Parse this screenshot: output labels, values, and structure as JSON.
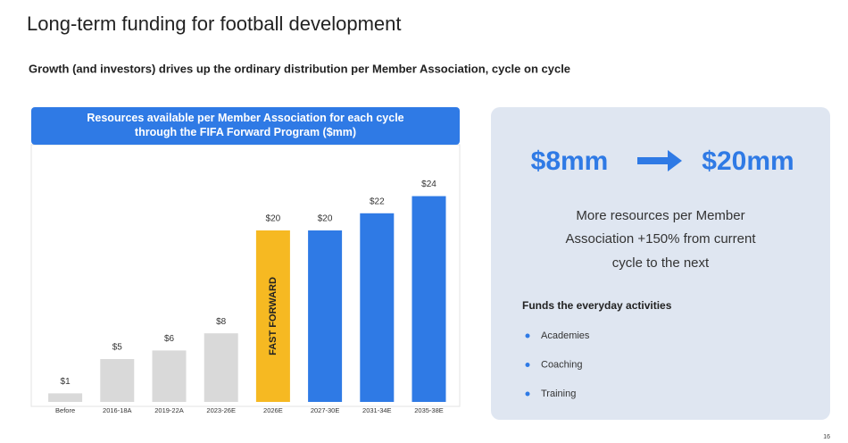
{
  "title": "Long-term funding for football development",
  "subtitle": "Growth (and investors) drives up the ordinary distribution per Member Association, cycle on cycle",
  "chart_data": {
    "type": "bar",
    "title": "Resources available per Member Association for each cycle through the FIFA Forward Program ($mm)",
    "categories": [
      "Before",
      "2016-18A",
      "2019-22A",
      "2023-26E",
      "2026E",
      "2027-30E",
      "2031-34E",
      "2035-38E"
    ],
    "values": [
      1,
      5,
      6,
      8,
      20,
      20,
      22,
      24
    ],
    "value_labels": [
      "$1",
      "$5",
      "$6",
      "$8",
      "$20",
      "$20",
      "$22",
      "$24"
    ],
    "colors": [
      "#d9d9d9",
      "#d9d9d9",
      "#d9d9d9",
      "#d9d9d9",
      "#f6b922",
      "#2f7ae5",
      "#2f7ae5",
      "#2f7ae5"
    ],
    "annotation": "FAST FORWARD"
  },
  "panel": {
    "from": "$8mm",
    "to": "$20mm",
    "description": [
      "More resources per Member",
      "Association +150% from current",
      "cycle to the next"
    ],
    "list_title": "Funds the everyday activities",
    "items": [
      "Academies",
      "Coaching",
      "Training"
    ]
  },
  "page_number": "16"
}
